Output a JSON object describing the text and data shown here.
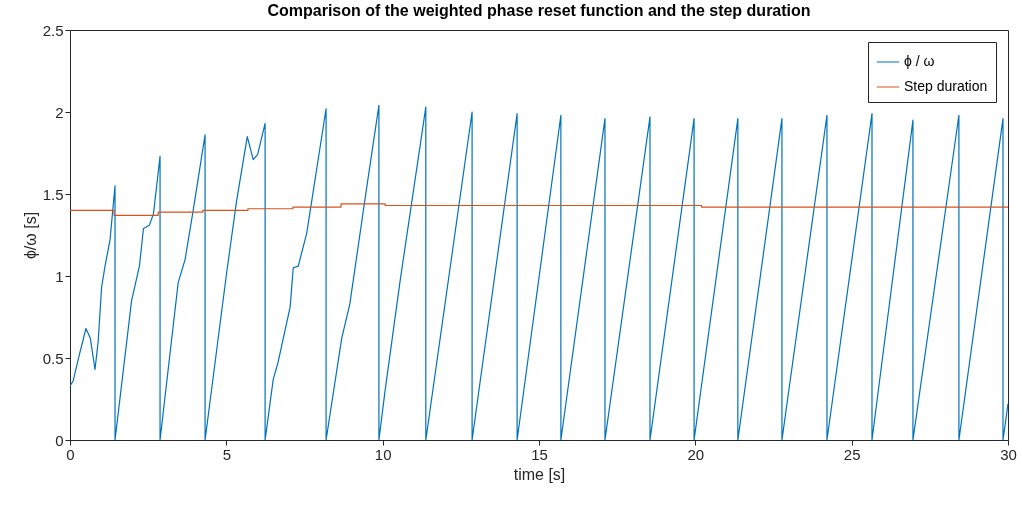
{
  "chart_data": {
    "type": "line",
    "title": "Comparison of the weighted phase reset function and the step duration",
    "xlabel": "time [s]",
    "ylabel": "ϕ/ω [s]",
    "xlim": [
      0,
      30
    ],
    "ylim": [
      0,
      2.5
    ],
    "xticks": [
      0,
      5,
      10,
      15,
      20,
      25,
      30
    ],
    "yticks": [
      0,
      0.5,
      1,
      1.5,
      2,
      2.5
    ],
    "grid": false,
    "legend": "top right",
    "marker": "none",
    "line_style": "solid",
    "series": [
      {
        "name": "ϕ / ω",
        "color": "#0072bd",
        "x": [
          0,
          0.1,
          0.3,
          0.51,
          0.65,
          0.8,
          0.9,
          1.01,
          1.12,
          1.28,
          1.44,
          1.44,
          1.97,
          2.22,
          2.35,
          2.54,
          2.67,
          2.88,
          2.88,
          3.46,
          3.68,
          3.94,
          4.32,
          4.32,
          5.01,
          5.33,
          5.67,
          5.86,
          6.0,
          6.24,
          6.24,
          6.5,
          6.65,
          7.04,
          7.14,
          7.3,
          7.57,
          8.19,
          8.19,
          8.69,
          8.95,
          9.49,
          9.88,
          9.88,
          10.07,
          10.55,
          11.38,
          11.38,
          12.86,
          12.86,
          14.3,
          14.3,
          15.7,
          15.7,
          17.11,
          17.11,
          18.55,
          18.55,
          19.96,
          19.96,
          21.36,
          21.36,
          22.77,
          22.77,
          24.21,
          24.21,
          25.65,
          25.65,
          26.96,
          26.96,
          28.43,
          28.43,
          29.84,
          29.84,
          30
        ],
        "values": [
          0.33,
          0.36,
          0.52,
          0.68,
          0.62,
          0.43,
          0.6,
          0.93,
          1.06,
          1.22,
          1.55,
          0,
          0.85,
          1.06,
          1.29,
          1.31,
          1.38,
          1.73,
          0,
          0.96,
          1.1,
          1.4,
          1.86,
          0,
          1.02,
          1.46,
          1.85,
          1.71,
          1.74,
          1.93,
          0,
          0.37,
          0.47,
          0.81,
          1.05,
          1.06,
          1.26,
          2.02,
          0,
          0.62,
          0.83,
          1.54,
          2.04,
          0,
          0.29,
          0.96,
          2.03,
          0,
          2.0,
          0,
          1.99,
          0,
          1.98,
          0,
          1.96,
          0,
          1.97,
          0,
          1.96,
          0,
          1.96,
          0,
          1.96,
          0,
          1.98,
          0,
          1.99,
          0,
          1.95,
          0,
          1.98,
          0,
          1.96,
          0,
          0.22
        ]
      },
      {
        "name": "Step duration",
        "color": "#d95319",
        "type": "step",
        "x": [
          0,
          1.41,
          2.82,
          4.25,
          5.69,
          7.13,
          8.67,
          10.08,
          20.2,
          30
        ],
        "values": [
          1.4,
          1.37,
          1.39,
          1.4,
          1.41,
          1.42,
          1.44,
          1.43,
          1.42,
          1.42
        ]
      }
    ]
  }
}
